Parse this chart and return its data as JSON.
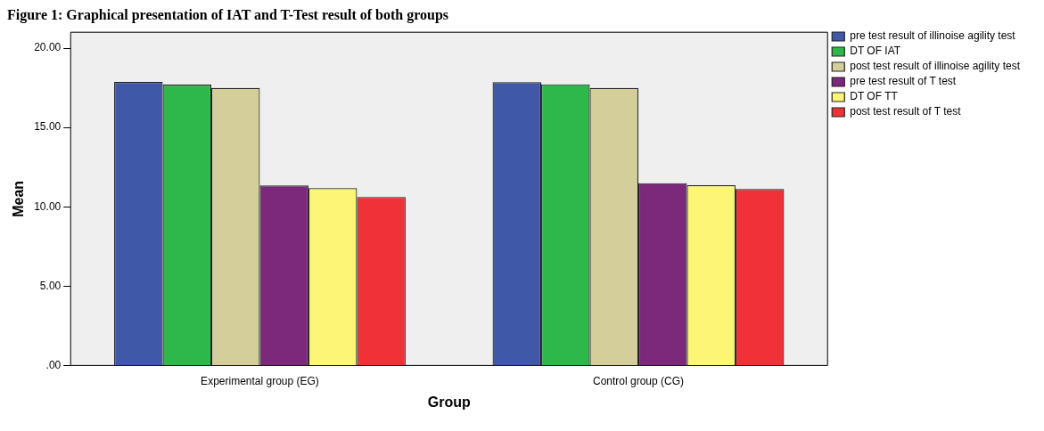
{
  "chart_data": {
    "type": "bar",
    "title": "Figure 1: Graphical presentation of IAT and T-Test result of both groups",
    "xlabel": "Group",
    "ylabel": "Mean",
    "categories": [
      "Experimental group (EG)",
      "Control group (CG)"
    ],
    "series": [
      {
        "name": "pre test result of illinoise agility test",
        "color": "#3f58a8",
        "values": [
          17.87,
          17.85
        ]
      },
      {
        "name": "DT OF IAT",
        "color": "#2fb84a",
        "values": [
          17.7,
          17.72
        ]
      },
      {
        "name": "post test result of illinoise agility test",
        "color": "#d4cf9a",
        "values": [
          17.49,
          17.49
        ]
      },
      {
        "name": "pre test result of T test",
        "color": "#7c287b",
        "values": [
          11.34,
          11.49
        ]
      },
      {
        "name": "DT OF TT",
        "color": "#fbf675",
        "values": [
          11.18,
          11.36
        ]
      },
      {
        "name": "post test result of T test",
        "color": "#f03238",
        "values": [
          10.62,
          11.12
        ]
      }
    ],
    "ylim": [
      0,
      21
    ],
    "yticks": [
      {
        "value": 0,
        "label": ".00"
      },
      {
        "value": 5,
        "label": "5.00"
      },
      {
        "value": 10,
        "label": "10.00"
      },
      {
        "value": 15,
        "label": "15.00"
      },
      {
        "value": 20,
        "label": "20.00"
      }
    ],
    "grid": false,
    "legend": "top right"
  }
}
